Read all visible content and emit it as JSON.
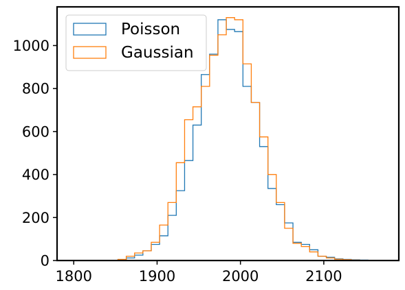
{
  "chart_data": {
    "type": "histogram",
    "title": "",
    "xlabel": "",
    "ylabel": "",
    "xlim": [
      1780,
      2190
    ],
    "ylim": [
      0,
      1180
    ],
    "xticks": [
      1800,
      1900,
      2000,
      2100
    ],
    "yticks": [
      0,
      200,
      400,
      600,
      800,
      1000
    ],
    "xtick_labels": [
      "1800",
      "1900",
      "2000",
      "2100"
    ],
    "ytick_labels": [
      "0",
      "200",
      "400",
      "600",
      "800",
      "1000"
    ],
    "grid": false,
    "legend_position": "upper-left",
    "bin_edges": [
      1853,
      1863,
      1873,
      1883,
      1893,
      1903,
      1913,
      1923,
      1933,
      1943,
      1953,
      1963,
      1973,
      1983,
      1993,
      2003,
      2013,
      2023,
      2033,
      2043,
      2053,
      2063,
      2073,
      2083,
      2093,
      2103,
      2113,
      2123,
      2133,
      2143,
      2153
    ],
    "series": [
      {
        "name": "Poisson",
        "color": "#1f77b4",
        "values": [
          3,
          12,
          25,
          45,
          75,
          115,
          210,
          325,
          465,
          630,
          865,
          960,
          1120,
          1075,
          1065,
          810,
          735,
          530,
          335,
          260,
          175,
          85,
          75,
          50,
          20,
          15,
          8,
          5,
          3,
          2
        ]
      },
      {
        "name": "Gaussian",
        "color": "#ff7f0e",
        "values": [
          5,
          20,
          35,
          45,
          85,
          165,
          270,
          455,
          655,
          715,
          810,
          955,
          1050,
          1130,
          1120,
          915,
          735,
          575,
          400,
          270,
          150,
          80,
          65,
          40,
          20,
          12,
          6,
          4,
          2,
          1
        ]
      }
    ]
  }
}
